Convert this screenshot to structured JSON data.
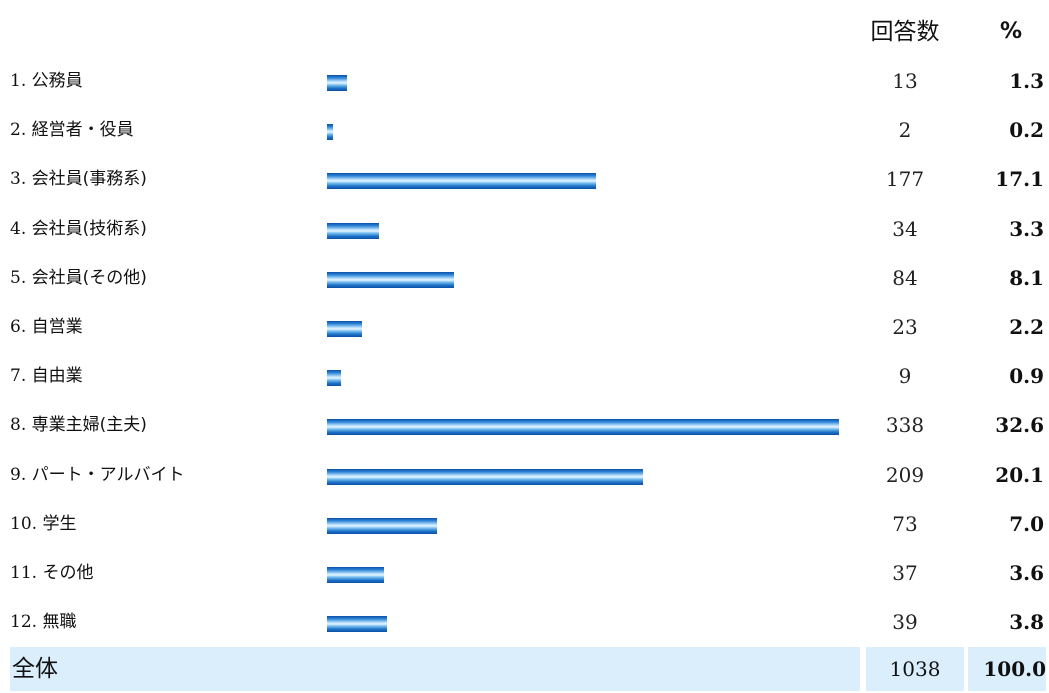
{
  "chart_data": {
    "type": "bar",
    "orientation": "horizontal",
    "column_headers": {
      "count": "回答数",
      "percent": "%"
    },
    "rows": [
      {
        "no": "1.",
        "label": "公務員",
        "count": 13,
        "percent": "1.3"
      },
      {
        "no": "2.",
        "label": "経営者・役員",
        "count": 2,
        "percent": "0.2"
      },
      {
        "no": "3.",
        "label": "会社員(事務系)",
        "count": 177,
        "percent": "17.1"
      },
      {
        "no": "4.",
        "label": "会社員(技術系)",
        "count": 34,
        "percent": "3.3"
      },
      {
        "no": "5.",
        "label": "会社員(その他)",
        "count": 84,
        "percent": "8.1"
      },
      {
        "no": "6.",
        "label": "自営業",
        "count": 23,
        "percent": "2.2"
      },
      {
        "no": "7.",
        "label": "自由業",
        "count": 9,
        "percent": "0.9"
      },
      {
        "no": "8.",
        "label": "専業主婦(主夫)",
        "count": 338,
        "percent": "32.6"
      },
      {
        "no": "9.",
        "label": "パート・アルバイト",
        "count": 209,
        "percent": "20.1"
      },
      {
        "no": "10.",
        "label": "学生",
        "count": 73,
        "percent": "7.0"
      },
      {
        "no": "11.",
        "label": "その他",
        "count": 37,
        "percent": "3.6"
      },
      {
        "no": "12.",
        "label": "無職",
        "count": 39,
        "percent": "3.8"
      }
    ],
    "total": {
      "label": "全体",
      "count": "1038",
      "percent": "100.0"
    },
    "bar_scale_max_percent": 32.6,
    "bar_color": "#1f74c8",
    "total_band_color": "#dbeefc"
  }
}
